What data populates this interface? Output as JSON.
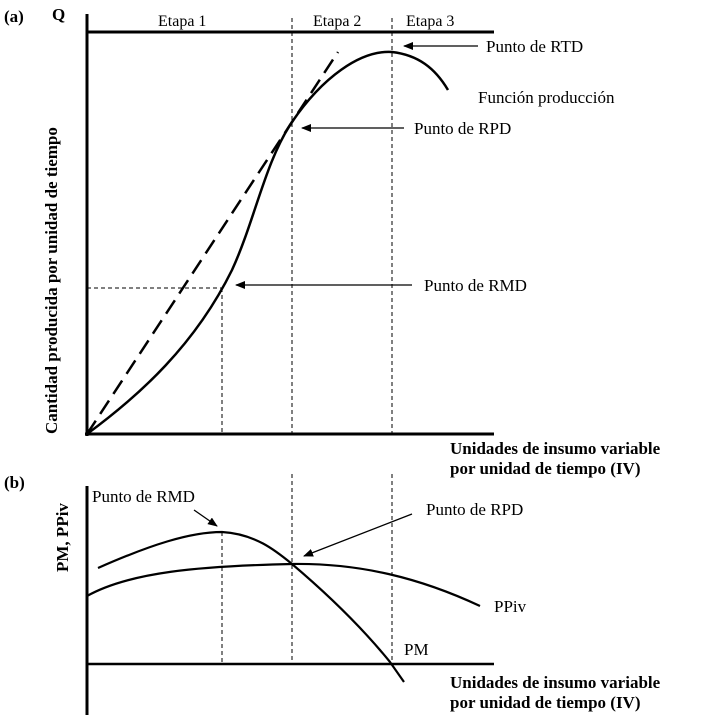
{
  "panel_a": {
    "tag": "(a)",
    "y_axis_label": "Q",
    "y_axis_title": "Cantidad producida por unidad de tiempo",
    "stages": [
      "Etapa 1",
      "Etapa 2",
      "Etapa 3"
    ],
    "curve_label": "Función producción",
    "x_axis_title_line1": "Unidades de insumo variable",
    "x_axis_title_line2": "por unidad de tiempo (IV)",
    "point_rtd": "Punto de RTD",
    "point_rpd": "Punto de RPD",
    "point_rmd": "Punto de RMD"
  },
  "panel_b": {
    "tag": "(b)",
    "y_axis_title": "PM, PPiv",
    "point_rmd": "Punto de RMD",
    "point_rpd": "Punto de RPD",
    "curve_ppiv": "PPiv",
    "curve_pm": "PM",
    "x_axis_title_line1": "Unidades de insumo variable",
    "x_axis_title_line2": "por unidad de tiempo (IV)"
  }
}
